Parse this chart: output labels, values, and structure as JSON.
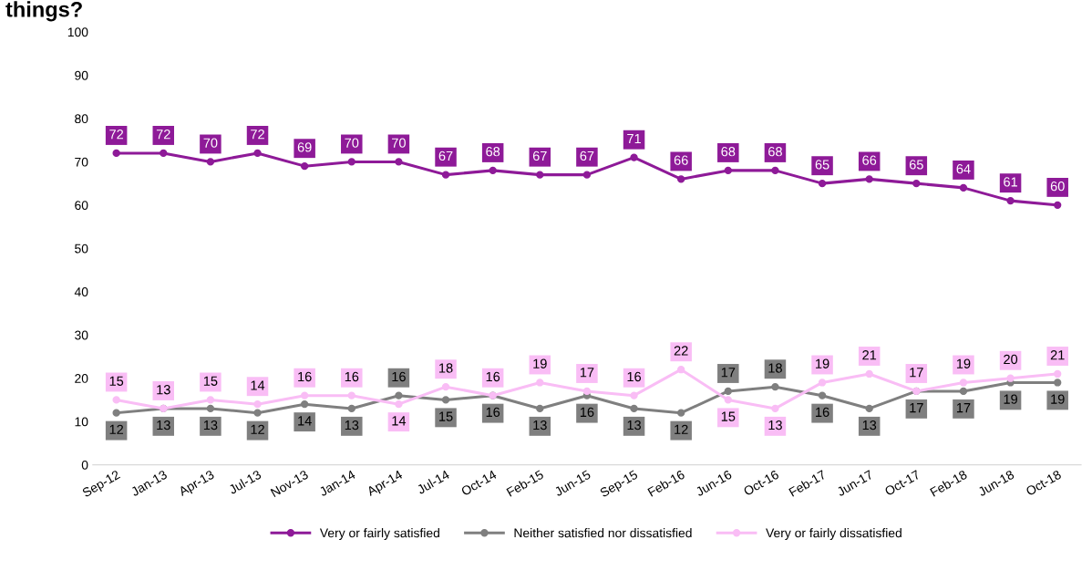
{
  "chart_data": {
    "type": "line",
    "title": "things?",
    "categories": [
      "Sep-12",
      "Jan-13",
      "Apr-13",
      "Jul-13",
      "Nov-13",
      "Jan-14",
      "Apr-14",
      "Jul-14",
      "Oct-14",
      "Feb-15",
      "Jun-15",
      "Sep-15",
      "Feb-16",
      "Jun-16",
      "Oct-16",
      "Feb-17",
      "Jun-17",
      "Oct-17",
      "Feb-18",
      "Jun-18",
      "Oct-18"
    ],
    "series": [
      {
        "name": "Very or fairly satisfied",
        "color": "#8e1a98",
        "values": [
          72,
          72,
          70,
          72,
          69,
          70,
          70,
          67,
          68,
          67,
          67,
          71,
          66,
          68,
          68,
          65,
          66,
          65,
          64,
          61,
          60
        ]
      },
      {
        "name": "Neither satisfied nor dissatisfied",
        "color": "#7f7f7f",
        "values": [
          12,
          13,
          13,
          12,
          14,
          13,
          16,
          15,
          16,
          13,
          16,
          13,
          12,
          17,
          18,
          16,
          13,
          17,
          17,
          19,
          19
        ]
      },
      {
        "name": "Very or fairly dissatisfied",
        "color": "#f9bdf5",
        "values": [
          15,
          13,
          15,
          14,
          16,
          16,
          14,
          18,
          16,
          19,
          17,
          16,
          22,
          15,
          13,
          19,
          21,
          17,
          19,
          20,
          21
        ]
      }
    ],
    "ylim": [
      0,
      100
    ],
    "yticks": [
      0,
      10,
      20,
      30,
      40,
      50,
      60,
      70,
      80,
      90,
      100
    ],
    "grid": false,
    "legend": "bottom",
    "marker": "circle",
    "line_style": "solid",
    "data_labels": true
  }
}
